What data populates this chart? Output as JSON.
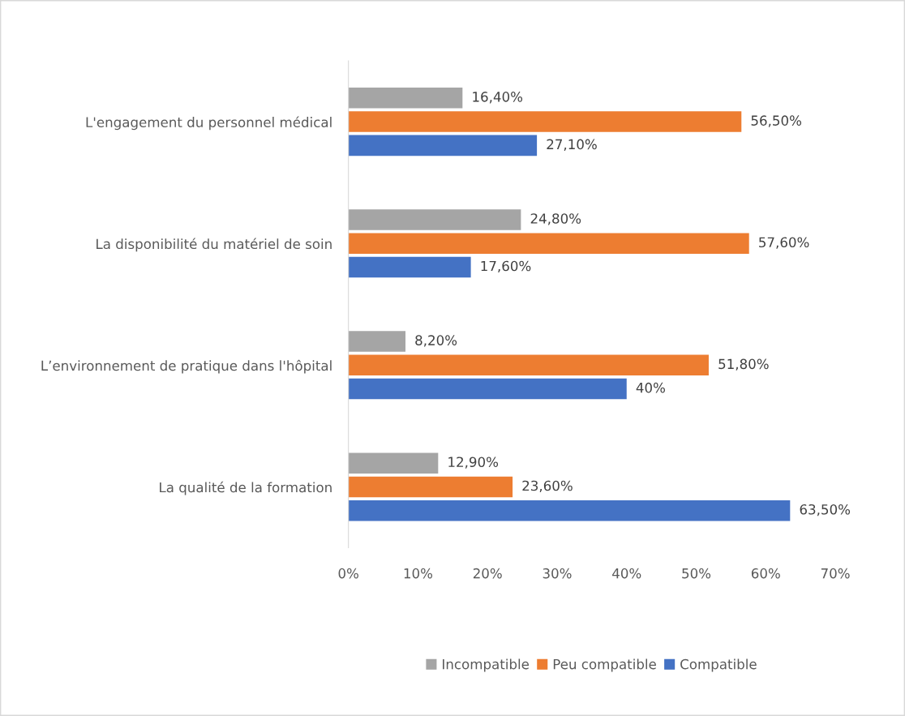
{
  "chart_data": {
    "type": "bar",
    "orientation": "horizontal",
    "categories": [
      "L'engagement du personnel médical",
      "La disponibilité du matériel de soin",
      "L’environnement de pratique dans l'hôpital",
      "La qualité de la formation"
    ],
    "series": [
      {
        "name": "Incompatible",
        "color": "#a5a5a5",
        "values": [
          16.4,
          24.8,
          8.2,
          12.9
        ],
        "value_labels": [
          "16,40%",
          "24,80%",
          "8,20%",
          "12,90%"
        ]
      },
      {
        "name": "Peu compatible",
        "color": "#ed7d31",
        "values": [
          56.5,
          57.6,
          51.8,
          23.6
        ],
        "value_labels": [
          "56,50%",
          "57,60%",
          "51,80%",
          "23,60%"
        ]
      },
      {
        "name": "Compatible",
        "color": "#4472c4",
        "values": [
          27.1,
          17.6,
          40,
          63.5
        ],
        "value_labels": [
          "27,10%",
          "17,60%",
          "40%",
          "63,50%"
        ]
      }
    ],
    "xlim": [
      0,
      70
    ],
    "xticks": [
      {
        "value": 0,
        "label": "0%"
      },
      {
        "value": 10,
        "label": "10%"
      },
      {
        "value": 20,
        "label": "20%"
      },
      {
        "value": 30,
        "label": "30%"
      },
      {
        "value": 40,
        "label": "40%"
      },
      {
        "value": 50,
        "label": "50%"
      },
      {
        "value": 60,
        "label": "60%"
      },
      {
        "value": 70,
        "label": "70%"
      }
    ],
    "grid": false,
    "legend": "bottom"
  }
}
